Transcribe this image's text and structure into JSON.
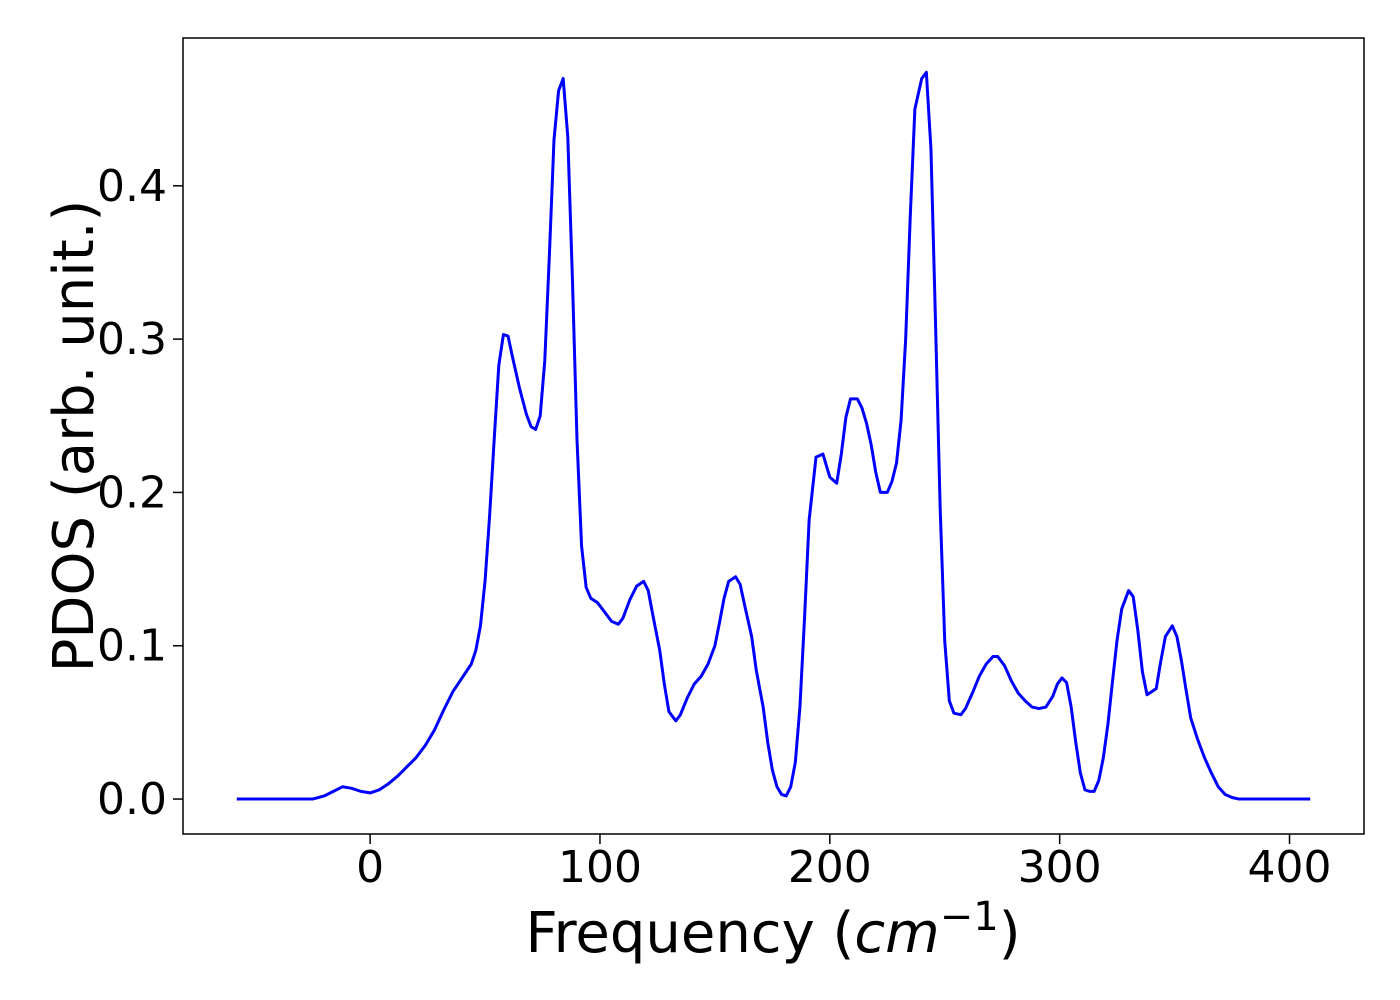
{
  "chart_data": {
    "type": "line",
    "xlabel": [
      "Frequency (",
      "cm",
      "−1",
      ")"
    ],
    "ylabel": "PDOS (arb. unit.)",
    "xlim": [
      -81.4,
      432.4
    ],
    "ylim": [
      -0.0228,
      0.4964
    ],
    "xticks": [
      0,
      100,
      200,
      300,
      400
    ],
    "yticks": [
      {
        "value": 0,
        "label": "0.0"
      },
      0.1,
      0.2,
      0.3,
      0.4
    ],
    "series": [
      {
        "color": "#0000ff",
        "x": [
          -58,
          -25,
          -20,
          -16,
          -12,
          -8,
          -4,
          0,
          4,
          8,
          12,
          16,
          20,
          24,
          28,
          32,
          36,
          40,
          44,
          46,
          48,
          50,
          52,
          54,
          56,
          58,
          60,
          62,
          65,
          68,
          70,
          72,
          74,
          76,
          78,
          80,
          82,
          84,
          86,
          88,
          90,
          92,
          94,
          96,
          99,
          102,
          105,
          108,
          110,
          113,
          116,
          119,
          121,
          123,
          126,
          128,
          130,
          133,
          135,
          138,
          141,
          144,
          147,
          150,
          152,
          154,
          156,
          159,
          161,
          163,
          166,
          168,
          171,
          173,
          175,
          177,
          179,
          181,
          183,
          185,
          187,
          189,
          191,
          194,
          197,
          200,
          203,
          205,
          207,
          209,
          212,
          214,
          216,
          218,
          220,
          222,
          225,
          227,
          229,
          231,
          233,
          235,
          237,
          240,
          242,
          244,
          246,
          248,
          250,
          252,
          254,
          257,
          259,
          262,
          265,
          268,
          271,
          273,
          276,
          279,
          282,
          285,
          288,
          291,
          294,
          297,
          299,
          301,
          303,
          305,
          307,
          309,
          311,
          313,
          315,
          317,
          319,
          321,
          323,
          325,
          327,
          330,
          332,
          334,
          336,
          338,
          340,
          342,
          344,
          346,
          349,
          351,
          353,
          355,
          357,
          360,
          363,
          366,
          369,
          372,
          375,
          378,
          409
        ],
        "values": [
          0,
          0,
          0.002,
          0.005,
          0.008,
          0.007,
          0.005,
          0.004,
          0.006,
          0.01,
          0.015,
          0.021,
          0.027,
          0.035,
          0.045,
          0.058,
          0.07,
          0.079,
          0.088,
          0.097,
          0.113,
          0.142,
          0.185,
          0.235,
          0.283,
          0.303,
          0.302,
          0.288,
          0.268,
          0.251,
          0.243,
          0.241,
          0.25,
          0.286,
          0.355,
          0.43,
          0.462,
          0.47,
          0.432,
          0.34,
          0.235,
          0.165,
          0.138,
          0.131,
          0.128,
          0.122,
          0.116,
          0.114,
          0.118,
          0.13,
          0.139,
          0.142,
          0.136,
          0.12,
          0.097,
          0.075,
          0.057,
          0.051,
          0.055,
          0.066,
          0.075,
          0.08,
          0.088,
          0.1,
          0.115,
          0.131,
          0.142,
          0.145,
          0.14,
          0.126,
          0.106,
          0.084,
          0.06,
          0.037,
          0.019,
          0.008,
          0.003,
          0.002,
          0.008,
          0.024,
          0.06,
          0.118,
          0.182,
          0.223,
          0.225,
          0.21,
          0.206,
          0.225,
          0.249,
          0.261,
          0.261,
          0.255,
          0.245,
          0.231,
          0.213,
          0.2,
          0.2,
          0.207,
          0.219,
          0.247,
          0.3,
          0.38,
          0.45,
          0.47,
          0.474,
          0.424,
          0.31,
          0.19,
          0.103,
          0.064,
          0.056,
          0.055,
          0.059,
          0.069,
          0.08,
          0.088,
          0.093,
          0.093,
          0.087,
          0.077,
          0.069,
          0.064,
          0.06,
          0.059,
          0.06,
          0.067,
          0.075,
          0.079,
          0.076,
          0.06,
          0.037,
          0.017,
          0.006,
          0.005,
          0.005,
          0.012,
          0.027,
          0.049,
          0.077,
          0.104,
          0.124,
          0.136,
          0.132,
          0.11,
          0.083,
          0.068,
          0.07,
          0.072,
          0.09,
          0.106,
          0.113,
          0.106,
          0.09,
          0.071,
          0.053,
          0.039,
          0.027,
          0.017,
          0.008,
          0.003,
          0.001,
          0,
          0
        ]
      }
    ]
  }
}
